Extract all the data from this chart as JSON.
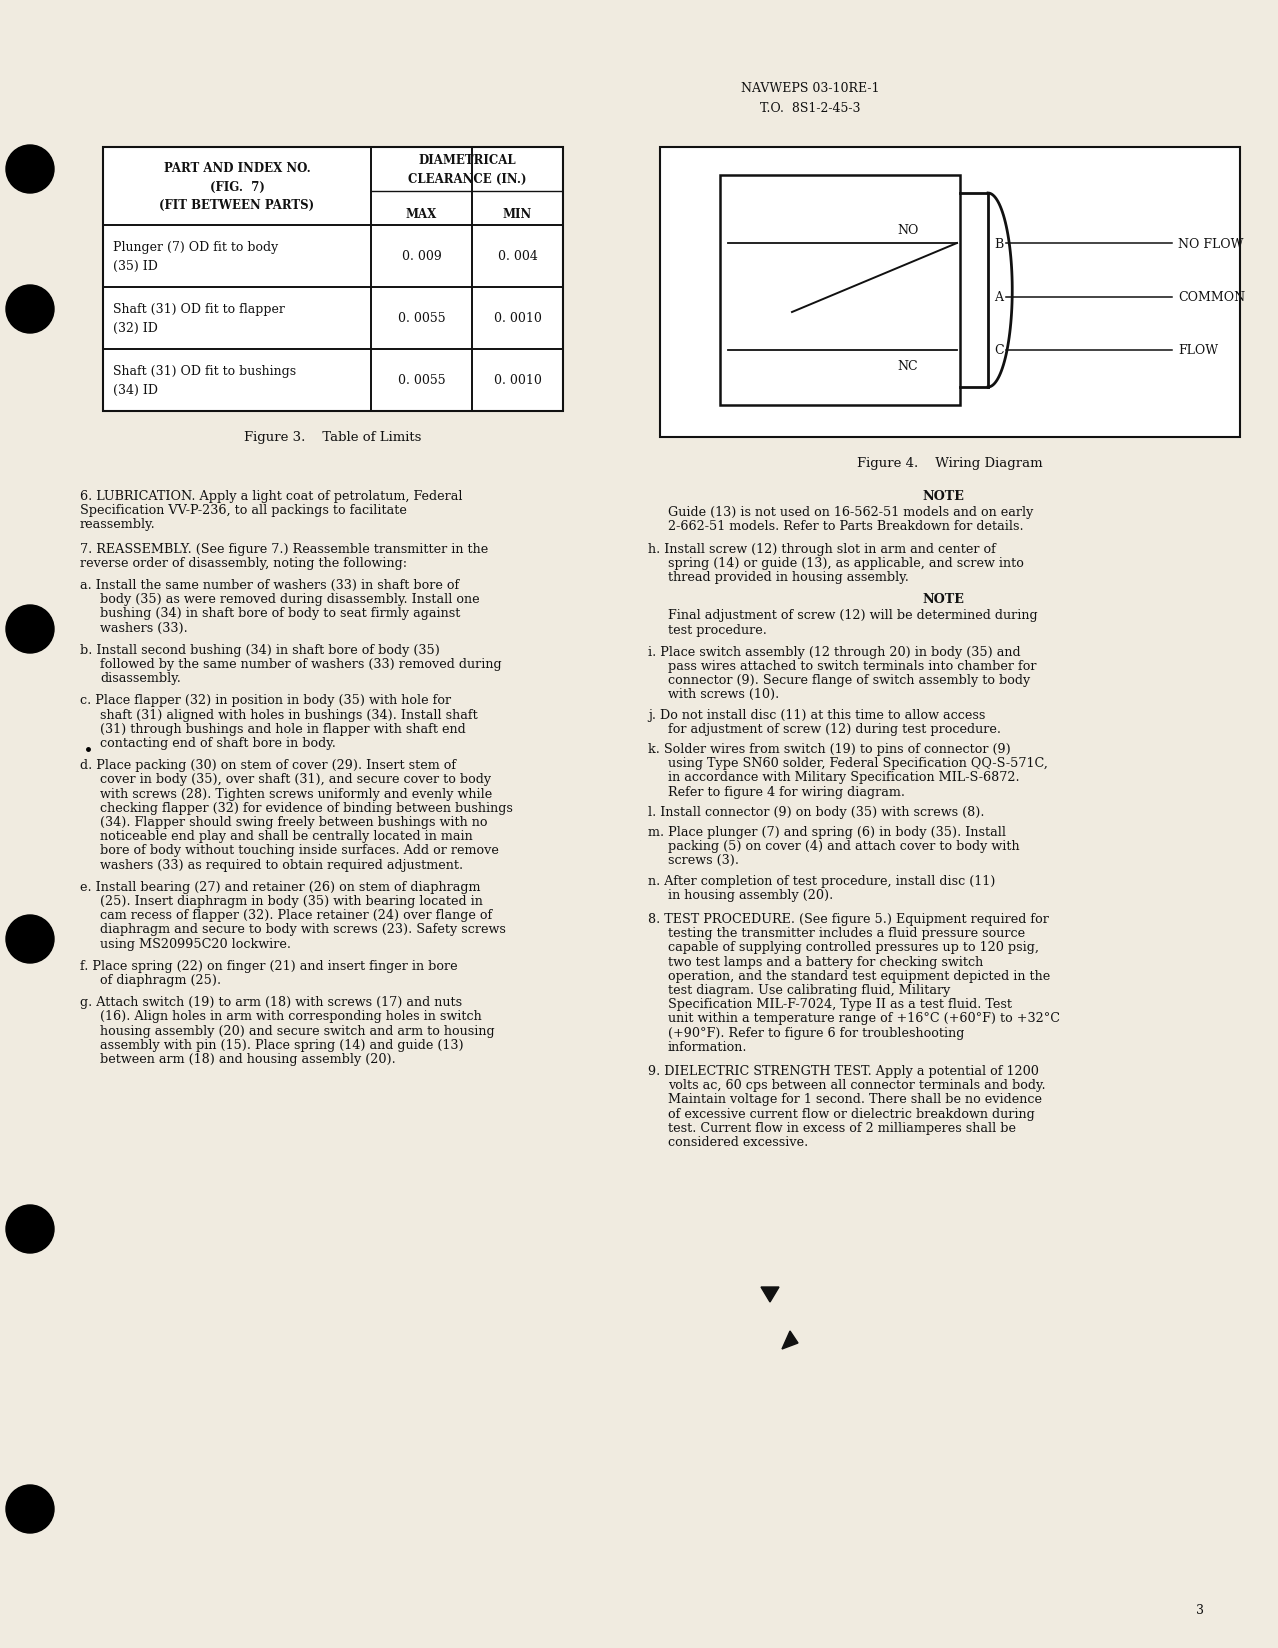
{
  "page_header_line1": "NAVWEPS 03-10RE-1",
  "page_header_line2": "T.O.  8S1-2-45-3",
  "page_number": "3",
  "bg_color": "#f0ebe0",
  "table_title": "Figure 3.    Table of Limits",
  "wiring_title": "Figure 4.    Wiring Diagram",
  "table_col1": [
    "Plunger (7) OD fit to body\n(35) ID",
    "Shaft (31) OD fit to flapper\n(32) ID",
    "Shaft (31) OD fit to bushings\n(34) ID"
  ],
  "table_col2": [
    "0. 009",
    "0. 0055",
    "0. 0055"
  ],
  "table_col3": [
    "0. 004",
    "0. 0010",
    "0. 0010"
  ],
  "para_6": "6.   LUBRICATION.   Apply a light coat of petrolatum, Federal Specification VV-P-236, to all packings to facilitate reassembly.",
  "para_7_intro": "7.   REASSEMBLY.   (See figure 7.)   Reassemble transmitter in the reverse order of disassembly, noting the following:",
  "para_a": "a.    Install the same number of washers (33) in shaft bore of body (35) as were removed during disassembly. Install one bushing (34) in shaft bore of body to seat firmly against washers (33).",
  "para_b": "b.    Install second bushing (34) in shaft bore of body (35) followed by the same number of washers (33) removed during disassembly.",
  "para_c": "c.    Place flapper (32) in position in body (35) with hole for shaft (31) aligned with holes in bushings (34). Install shaft (31) through bushings and hole in flapper with shaft end contacting end of shaft bore in body.",
  "para_d": "d.    Place packing (30) on stem of cover (29).   Insert stem of cover in body (35), over shaft (31), and secure cover to body with screws (28).   Tighten screws uniformly and evenly while checking flapper (32) for evidence of binding between bushings (34).   Flapper should swing freely between bushings with no noticeable end play and shall be centrally located in main bore of body without touching inside surfaces.   Add or remove washers (33) as required to obtain required adjustment.",
  "para_e": "e.    Install bearing (27) and retainer (26) on stem of diaphragm (25).   Insert diaphragm in body (35) with bearing located in cam recess of flapper (32).   Place retainer (24) over flange of diaphragm and secure to body with screws (23).   Safety screws using MS20995C20 lockwire.",
  "para_f": "f.    Place spring (22) on finger (21) and insert finger in bore of diaphragm (25).",
  "para_g": "g.    Attach switch (19) to arm (18) with screws (17) and nuts (16).   Align holes in arm with corresponding holes in switch housing assembly (20) and secure switch and arm to housing assembly with pin (15).   Place spring (14) and guide (13) between arm (18) and housing assembly (20).",
  "note1_text": "Guide (13) is not used on 16-562-51 models and on early 2-662-51 models.   Refer to Parts Breakdown for details.",
  "para_h": "h.    Install screw (12) through slot in arm and center of spring (14) or guide (13), as applicable, and screw into thread provided in housing assembly.",
  "note2_text": "Final adjustment of screw (12) will be determined during test procedure.",
  "para_i": "i.    Place switch assembly (12 through 20) in body (35) and pass wires attached to switch terminals into chamber for connector (9).   Secure flange of switch assembly to body with screws (10).",
  "para_j": "j.    Do not install disc (11) at this time to allow access for adjustment of screw (12) during test procedure.",
  "para_k": "k.    Solder wires from switch (19) to pins of connector (9) using Type SN60 solder, Federal Specification QQ-S-571C, in accordance with Military Specification MIL-S-6872.   Refer to figure 4 for wiring diagram.",
  "para_l": "l.    Install connector (9) on body (35) with screws (8).",
  "para_m": "m.    Place plunger (7) and spring (6) in body (35). Install packing (5) on cover (4) and attach cover to body with screws (3).",
  "para_n": "n.    After completion of test procedure, install disc (11) in housing assembly (20).",
  "para_8": "8.   TEST PROCEDURE.   (See figure 5.)   Equipment required for testing the transmitter includes a fluid pressure source capable of supplying controlled pressures up to 120 psig, two test lamps and a battery for checking switch operation, and the standard test equipment depicted in the test diagram.   Use calibrating fluid, Military Specification MIL-F-7024, Type II as a test fluid.   Test unit within a temperature range of +16°C (+60°F) to +32°C (+90°F).   Refer to figure 6 for troubleshooting information.",
  "para_9": "9.   DIELECTRIC STRENGTH TEST.   Apply a potential of 1200 volts ac, 60 cps between all connector terminals and body.   Maintain voltage for 1 second.   There shall be no evidence of excessive current flow or dielectric breakdown during test.   Current flow in excess of 2 milliamperes shall be considered excessive."
}
